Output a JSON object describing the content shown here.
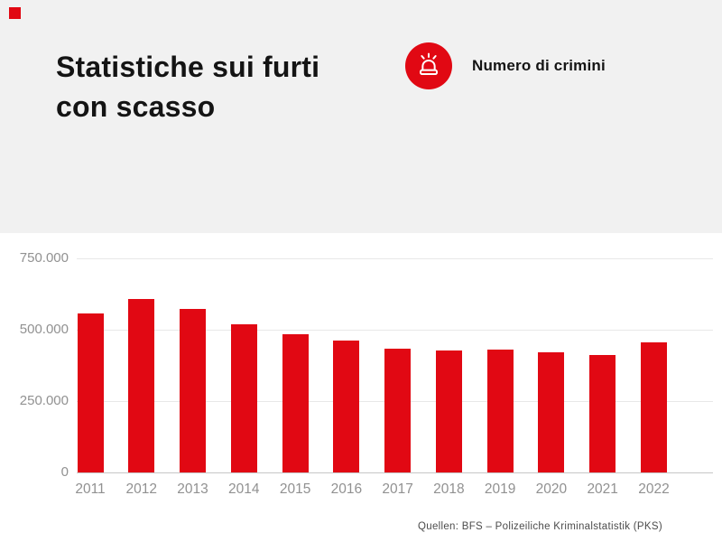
{
  "header": {
    "title_lines": [
      "Statistiche sui furti",
      "con scasso"
    ],
    "legend": {
      "label": "Numero di crimini",
      "icon": "siren-icon"
    }
  },
  "footer": {
    "source": "Quellen: BFS – Polizeiliche Kriminalstatistik (PKS)"
  },
  "colors": {
    "bar": "#e10813",
    "legend_circle": "#e10813",
    "brand_mark": "#e10813",
    "header_bg": "#f1f1f1",
    "title_text": "#141414",
    "axis_text": "#919191",
    "gridline": "#e8e8e8",
    "baseline": "#c6c6c6",
    "source_text": "#4c4c4c"
  },
  "chart_data": {
    "type": "bar",
    "title": "Statistiche sui furti con scasso",
    "series_label": "Numero di crimini",
    "categories": [
      "2011",
      "2012",
      "2013",
      "2014",
      "2015",
      "2016",
      "2017",
      "2018",
      "2019",
      "2020",
      "2021",
      "2022"
    ],
    "values": [
      556000,
      608000,
      573000,
      520000,
      485000,
      463000,
      434000,
      428000,
      429000,
      421000,
      412000,
      455000
    ],
    "xlabel": "",
    "ylabel": "",
    "ylim": [
      0,
      750000
    ],
    "yticks": [
      0,
      250000,
      500000,
      750000
    ],
    "ytick_labels": [
      "0",
      "250.000",
      "500.000",
      "750.000"
    ],
    "grid": true,
    "bar_color": "#e10813",
    "legend_position": "top-right",
    "source": "Quellen: BFS – Polizeiliche Kriminalstatistik (PKS)"
  }
}
